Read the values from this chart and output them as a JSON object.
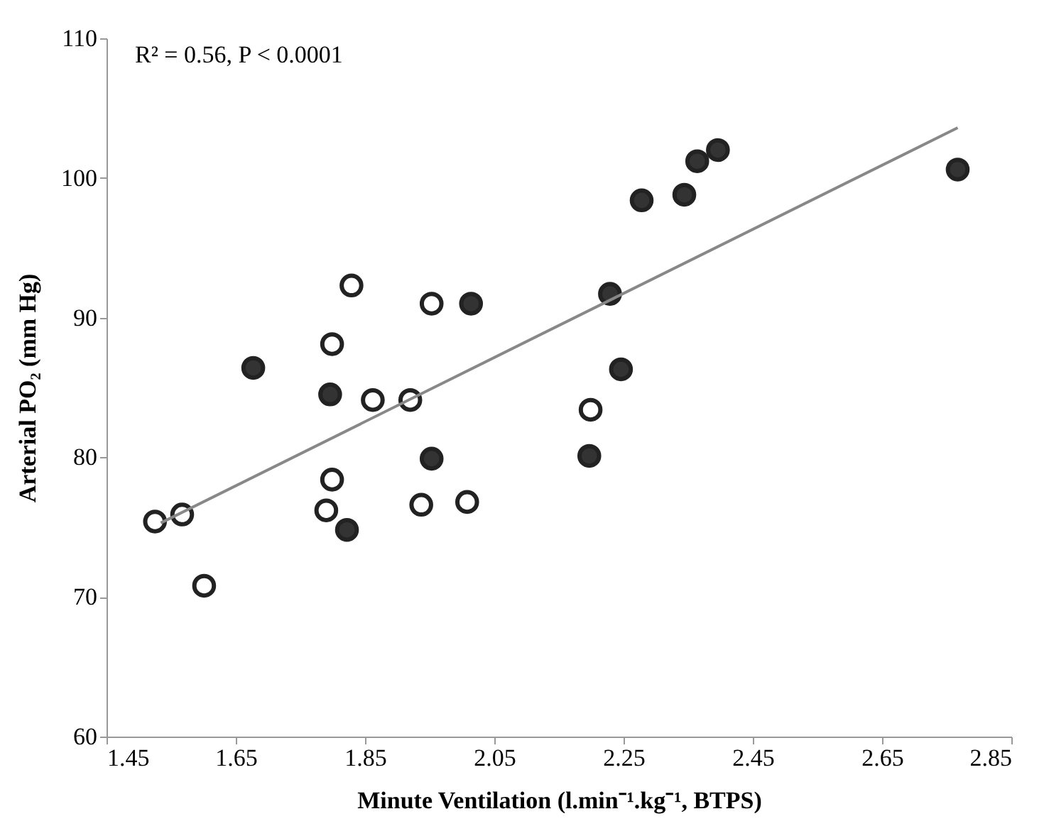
{
  "chart_data": {
    "type": "scatter",
    "xlabel": "Minute Ventilation (l.min⁻¹.kg⁻¹, BTPS)",
    "ylabel": "Arterial PO₂ (mm Hg)",
    "annotations": [
      "R² = 0.56, P < 0.0001"
    ],
    "xlim": [
      1.45,
      2.85
    ],
    "xticks": [
      1.45,
      1.65,
      1.85,
      2.05,
      2.25,
      2.45,
      2.65,
      2.85
    ],
    "ylim": [
      60,
      110
    ],
    "yticks": [
      60,
      70,
      80,
      90,
      100,
      110
    ],
    "marker": "circle",
    "series": [
      {
        "type": "scatter",
        "color": "#ffffff",
        "x": [
          1.525,
          1.567,
          1.601,
          1.799,
          1.829,
          1.953,
          1.862,
          1.92,
          1.799,
          1.79,
          1.937,
          2.008,
          2.199
        ],
        "values": [
          75.4,
          75.9,
          70.8,
          88.1,
          92.3,
          91.0,
          84.1,
          84.1,
          78.4,
          76.2,
          76.6,
          76.8,
          83.4
        ]
      },
      {
        "type": "scatter",
        "color": "#333333",
        "x": [
          1.677,
          1.796,
          2.014,
          1.953,
          1.822,
          2.278,
          2.344,
          2.364,
          2.396,
          2.767,
          2.229,
          2.246,
          2.197
        ],
        "values": [
          86.4,
          84.5,
          91.0,
          79.9,
          74.8,
          98.4,
          98.8,
          101.2,
          102.0,
          100.6,
          91.7,
          86.3,
          80.1
        ]
      },
      {
        "type": "line",
        "color": "#888888",
        "marker": "none",
        "line_style": "solid",
        "x": [
          1.534,
          2.767
        ],
        "values": [
          75.3,
          103.6
        ]
      }
    ]
  }
}
